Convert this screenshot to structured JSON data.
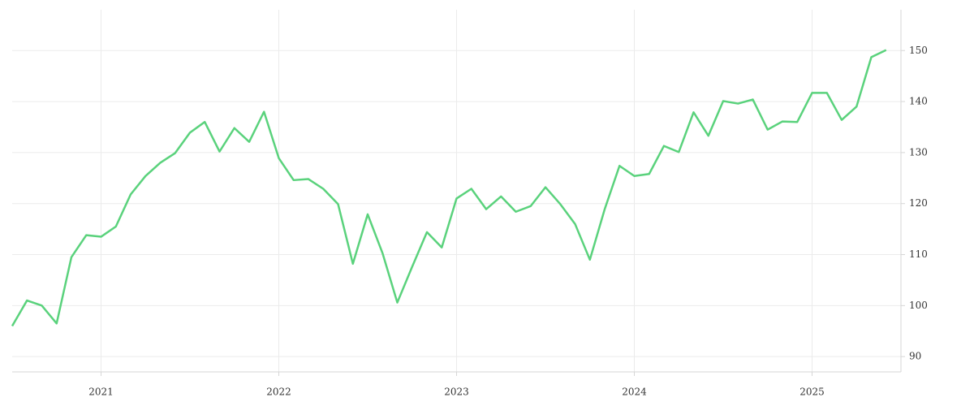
{
  "chart_data": {
    "type": "line",
    "x": [
      "2020-07",
      "2020-08",
      "2020-09",
      "2020-10",
      "2020-11",
      "2020-12",
      "2021-01",
      "2021-02",
      "2021-03",
      "2021-04",
      "2021-05",
      "2021-06",
      "2021-07",
      "2021-08",
      "2021-09",
      "2021-10",
      "2021-11",
      "2021-12",
      "2022-01",
      "2022-02",
      "2022-03",
      "2022-04",
      "2022-05",
      "2022-06",
      "2022-07",
      "2022-08",
      "2022-09",
      "2022-10",
      "2022-11",
      "2022-12",
      "2023-01",
      "2023-02",
      "2023-03",
      "2023-04",
      "2023-05",
      "2023-06",
      "2023-07",
      "2023-08",
      "2023-09",
      "2023-10",
      "2023-11",
      "2023-12",
      "2024-01",
      "2024-02",
      "2024-03",
      "2024-04",
      "2024-05",
      "2024-06",
      "2024-07",
      "2024-08",
      "2024-09",
      "2024-10",
      "2024-11",
      "2024-12",
      "2025-01",
      "2025-02",
      "2025-03",
      "2025-04",
      "2025-05",
      "2025-06"
    ],
    "series": [
      {
        "color": "#5ad27c",
        "values": [
          96,
          101,
          100,
          96.5,
          109.5,
          113.8,
          113.5,
          115.5,
          121.8,
          125.4,
          128,
          129.9,
          133.9,
          136,
          130.2,
          134.8,
          132.1,
          138,
          128.9,
          124.6,
          124.8,
          122.9,
          119.9,
          108.2,
          117.9,
          110.3,
          100.6,
          107.6,
          114.4,
          111.4,
          121,
          122.9,
          118.9,
          121.4,
          118.4,
          119.5,
          123.2,
          119.9,
          116,
          109,
          118.9,
          127.4,
          125.4,
          125.8,
          131.3,
          130.1,
          137.9,
          133.3,
          140.1,
          139.6,
          140.4,
          134.5,
          136.1,
          136,
          141.7,
          141.7,
          136.4,
          139,
          148.7,
          150.1
        ]
      }
    ],
    "xlim": [
      "2020-07",
      "2025-07"
    ],
    "xticks": [
      {
        "value": "2021-01",
        "label": "2021"
      },
      {
        "value": "2022-01",
        "label": "2022"
      },
      {
        "value": "2023-01",
        "label": "2023"
      },
      {
        "value": "2024-01",
        "label": "2024"
      },
      {
        "value": "2025-01",
        "label": "2025"
      }
    ],
    "ylim": [
      87,
      158
    ],
    "yticks": [
      90,
      100,
      110,
      120,
      130,
      140,
      150
    ],
    "grid": true
  }
}
